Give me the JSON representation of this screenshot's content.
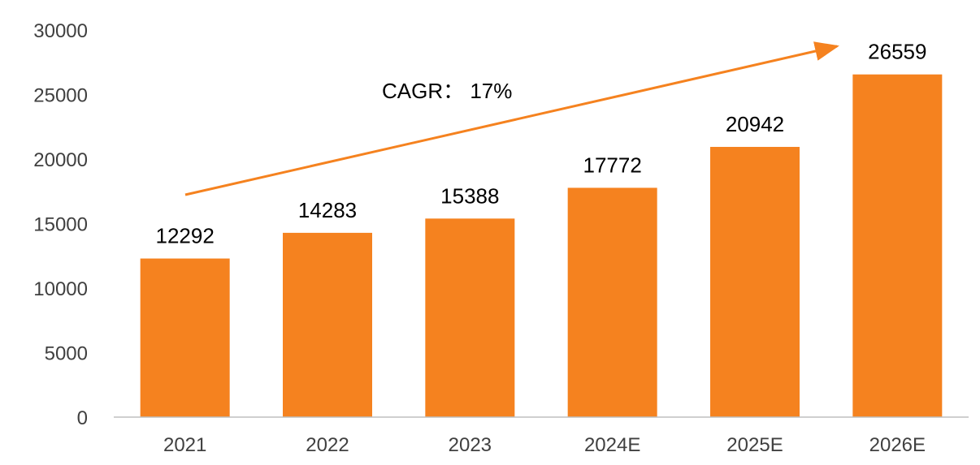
{
  "chart_data": {
    "type": "bar",
    "categories": [
      "2021",
      "2022",
      "2023",
      "2024E",
      "2025E",
      "2026E"
    ],
    "values": [
      12292,
      14283,
      15388,
      17772,
      20942,
      26559
    ],
    "data_labels": [
      "12292",
      "14283",
      "15388",
      "17772",
      "20942",
      "26559"
    ],
    "y_ticks": [
      "0",
      "5000",
      "10000",
      "15000",
      "20000",
      "25000",
      "30000"
    ],
    "ylim": [
      0,
      30000
    ],
    "grid": false,
    "legend": "none",
    "annotation": "CAGR：  17%",
    "colors": {
      "bar": "#F5821F",
      "arrow": "#F5821F",
      "axis": "#BFBFBF"
    }
  }
}
